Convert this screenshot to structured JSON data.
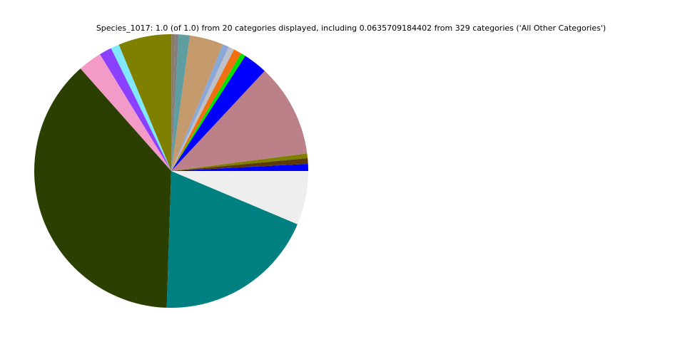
{
  "chart_data": {
    "type": "pie",
    "title": "Species_1017: 1.0 (of 1.0) from 20 categories displayed, including 0.0635709184402 from 329 categories ('All Other Categories')",
    "values": [
      0.0083,
      0.0067,
      0.0056,
      0.11,
      0.0286,
      0.0056,
      0.0094,
      0.0069,
      0.0075,
      0.0397,
      0.0131,
      0.0042,
      0.0042,
      0.0628,
      0.01,
      0.0147,
      0.0281,
      0.3794,
      0.1917,
      0.0636
    ],
    "colors": [
      "#0000ff",
      "#5c3a0a",
      "#808000",
      "#bc8088",
      "#0000ff",
      "#00e000",
      "#f07010",
      "#c0c0c8",
      "#8aa8d8",
      "#c49a6c",
      "#5f9ea0",
      "#808080",
      "#8a7a6a",
      "#808000",
      "#80e8ff",
      "#8a40ff",
      "#f49ac8",
      "#2b3f00",
      "#008080",
      "#eeeeee"
    ]
  }
}
